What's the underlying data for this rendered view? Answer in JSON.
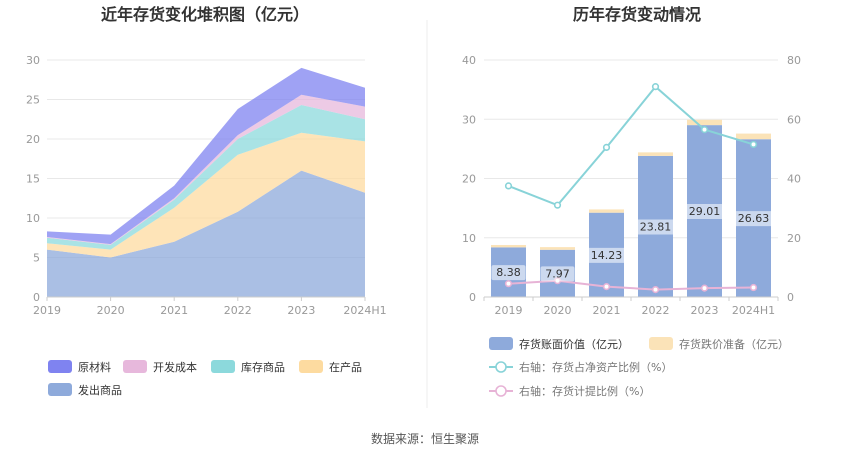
{
  "source_label": "数据来源：恒生聚源",
  "chart_data": [
    {
      "type": "area",
      "stacked": true,
      "title": "近年存货变化堆积图（亿元）",
      "categories": [
        "2019",
        "2020",
        "2021",
        "2022",
        "2023",
        "2024H1"
      ],
      "ylim": [
        0,
        30
      ],
      "yticks": [
        0,
        5,
        10,
        15,
        20,
        25,
        30
      ],
      "grid": true,
      "legend_position": "bottom-left",
      "series": [
        {
          "name": "发出商品",
          "color": "#8eaadb",
          "values": [
            6.0,
            5.0,
            7.0,
            10.8,
            16.0,
            13.2
          ]
        },
        {
          "name": "在产品",
          "color": "#fddba0",
          "values": [
            0.8,
            1.0,
            4.3,
            7.2,
            4.8,
            6.5
          ]
        },
        {
          "name": "库存商品",
          "color": "#8cd9dc",
          "values": [
            0.7,
            0.6,
            1.0,
            2.0,
            3.5,
            2.8
          ]
        },
        {
          "name": "开发成本",
          "color": "#e7b8dc",
          "values": [
            0.1,
            0.1,
            0.2,
            0.5,
            1.3,
            1.6
          ]
        },
        {
          "name": "原材料",
          "color": "#7f83f0",
          "values": [
            0.7,
            1.2,
            1.6,
            3.3,
            3.4,
            2.4
          ]
        }
      ]
    },
    {
      "type": "bar",
      "title": "历年存货变动情况",
      "categories": [
        "2019",
        "2020",
        "2021",
        "2022",
        "2023",
        "2024H1"
      ],
      "ylim": [
        0,
        40
      ],
      "yticks": [
        0,
        10,
        20,
        30,
        40
      ],
      "y2lim": [
        0,
        80
      ],
      "y2ticks": [
        0,
        20,
        40,
        60,
        80
      ],
      "grid": true,
      "legend_position": "bottom",
      "series": [
        {
          "name": "存货账面价值（亿元）",
          "type": "bar",
          "axis": "left",
          "color": "#8eaadb",
          "values": [
            8.38,
            7.97,
            14.23,
            23.81,
            29.01,
            26.63
          ],
          "labels": [
            "8.38",
            "7.97",
            "14.23",
            "23.81",
            "29.01",
            "26.63"
          ]
        },
        {
          "name": "存货跌价准备（亿元）",
          "type": "bar",
          "axis": "left",
          "stack": true,
          "color": "#fbe3b8",
          "values": [
            0.4,
            0.45,
            0.55,
            0.6,
            0.9,
            0.95
          ]
        },
        {
          "name": "右轴：存货占净资产比例（%）",
          "type": "line",
          "axis": "right",
          "color": "#88d3d8",
          "values": [
            37.5,
            31.0,
            50.5,
            71.0,
            56.5,
            51.5
          ]
        },
        {
          "name": "右轴：存货计提比例（%）",
          "type": "line",
          "axis": "right",
          "color": "#e7b3d6",
          "values": [
            4.5,
            5.5,
            3.5,
            2.5,
            3.0,
            3.2
          ]
        }
      ]
    }
  ]
}
